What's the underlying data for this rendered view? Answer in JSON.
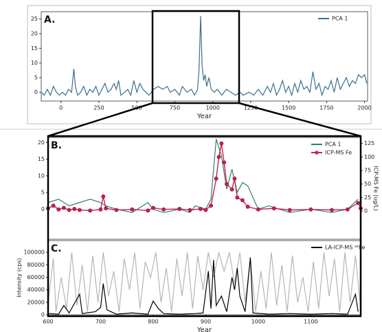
{
  "chart_data": [
    {
      "type": "line",
      "label": "A.",
      "xlabel": "Year",
      "legend": "upper right",
      "xlim": [
        -130,
        2020
      ],
      "ylim": [
        -3,
        27.5
      ],
      "xticks": [
        0,
        250,
        500,
        750,
        1000,
        1250,
        1500,
        1750,
        2000
      ],
      "yticks": [
        0,
        5,
        10,
        15,
        20,
        25
      ],
      "series": [
        {
          "name": "PCA 1",
          "color": "#3a6e8f",
          "x": [
            -130,
            -110,
            -90,
            -70,
            -50,
            -30,
            -10,
            10,
            30,
            50,
            70,
            85,
            95,
            110,
            130,
            150,
            170,
            190,
            210,
            230,
            250,
            270,
            290,
            310,
            330,
            350,
            365,
            380,
            395,
            420,
            440,
            460,
            480,
            500,
            520,
            540,
            560,
            580,
            610,
            640,
            670,
            700,
            720,
            750,
            780,
            800,
            830,
            860,
            880,
            900,
            910,
            920,
            930,
            940,
            950,
            960,
            975,
            990,
            1010,
            1030,
            1060,
            1090,
            1120,
            1150,
            1180,
            1200,
            1240,
            1270,
            1300,
            1330,
            1360,
            1380,
            1400,
            1420,
            1440,
            1460,
            1480,
            1500,
            1520,
            1540,
            1560,
            1580,
            1600,
            1620,
            1640,
            1660,
            1680,
            1700,
            1720,
            1740,
            1760,
            1780,
            1800,
            1820,
            1840,
            1860,
            1880,
            1900,
            1920,
            1940,
            1960,
            1980,
            2000,
            2015
          ],
          "values": [
            0,
            -1,
            1,
            -1,
            2,
            0,
            -1,
            0,
            -1,
            1,
            0,
            8,
            2,
            -1,
            0,
            2,
            -1,
            1,
            0,
            2,
            -1,
            1,
            3,
            0,
            1,
            3,
            1,
            4,
            -1,
            0,
            1,
            -1,
            4,
            0,
            3,
            1,
            0,
            -1,
            1,
            2,
            1,
            2,
            0,
            1,
            -1,
            2,
            0,
            1,
            -1,
            1,
            8,
            26,
            9,
            4,
            6,
            2,
            5,
            1,
            0,
            1,
            -1,
            1,
            0,
            -1,
            0,
            -1,
            0,
            -1,
            1,
            -1,
            2,
            0,
            3,
            -1,
            1,
            4,
            0,
            2,
            -1,
            3,
            0,
            4,
            1,
            2,
            0,
            7,
            1,
            3,
            -1,
            2,
            1,
            4,
            0,
            5,
            1,
            3,
            5,
            2,
            4,
            3,
            6,
            5,
            6,
            3
          ]
        }
      ]
    },
    {
      "type": "line",
      "label": "B.",
      "legend": "upper right",
      "ylabel2": "ICP-MS Fe (ug/L)",
      "xlim": [
        600,
        1195
      ],
      "ylim": [
        -9,
        21.5
      ],
      "y2lim": [
        -52,
        136
      ],
      "yticks": [
        0,
        5,
        10,
        15,
        20
      ],
      "y2ticks": [
        0,
        25,
        50,
        75,
        100,
        125
      ],
      "series": [
        {
          "name": "PCA 1",
          "color": "#2e7d6b",
          "x": [
            600,
            620,
            640,
            660,
            680,
            700,
            710,
            730,
            760,
            790,
            800,
            820,
            850,
            870,
            880,
            900,
            910,
            920,
            930,
            940,
            950,
            960,
            970,
            980,
            1000,
            1020,
            1060,
            1100,
            1140,
            1170,
            1190
          ],
          "values": [
            2,
            3,
            1,
            2,
            3,
            2,
            1,
            0,
            -1,
            2,
            0,
            -1,
            0,
            -1,
            1,
            0,
            3,
            21,
            16,
            6,
            12,
            5,
            8,
            7,
            0,
            1,
            -1,
            0,
            -1,
            0,
            3
          ]
        },
        {
          "name": "ICP-MS Fe",
          "color": "#cc1f4a",
          "axis": "y2",
          "marker": "circle",
          "x": [
            600,
            610,
            620,
            630,
            640,
            650,
            660,
            680,
            700,
            705,
            710,
            730,
            760,
            790,
            800,
            820,
            850,
            870,
            890,
            900,
            910,
            920,
            925,
            930,
            935,
            940,
            950,
            955,
            960,
            970,
            980,
            1000,
            1030,
            1060,
            1100,
            1140,
            1170,
            1190,
            1195
          ],
          "values": [
            5,
            10,
            3,
            6,
            2,
            4,
            2,
            1,
            3,
            27,
            5,
            2,
            3,
            1,
            6,
            3,
            4,
            2,
            4,
            2,
            10,
            60,
            100,
            125,
            90,
            50,
            40,
            60,
            25,
            20,
            8,
            3,
            5,
            2,
            3,
            2,
            3,
            15,
            5
          ]
        }
      ]
    },
    {
      "type": "line",
      "label": "C.",
      "xlabel": "Year",
      "ylabel": "Intensity (cps)",
      "legend": "upper right",
      "xlim": [
        600,
        1195
      ],
      "ylim": [
        0,
        119000
      ],
      "xticks": [
        600,
        700,
        800,
        900,
        1000,
        1100
      ],
      "yticks": [
        0,
        20000,
        40000,
        60000,
        80000,
        100000
      ],
      "series": [
        {
          "color": "#b5b5b5",
          "x": [
            600,
            610,
            615,
            625,
            635,
            645,
            655,
            665,
            675,
            685,
            695,
            705,
            715,
            725,
            735,
            745,
            755,
            765,
            775,
            785,
            795,
            805,
            815,
            825,
            835,
            845,
            855,
            865,
            875,
            885,
            895,
            905,
            915,
            925,
            935,
            945,
            955,
            965,
            975,
            985,
            995,
            1005,
            1015,
            1025,
            1035,
            1045,
            1055,
            1065,
            1075,
            1085,
            1095,
            1105,
            1115,
            1125,
            1135,
            1145,
            1155,
            1165,
            1175,
            1185,
            1195
          ],
          "values": [
            20000,
            90000,
            5000,
            60000,
            10000,
            100000,
            15000,
            80000,
            5000,
            95000,
            20000,
            100000,
            30000,
            70000,
            5000,
            90000,
            40000,
            100000,
            10000,
            85000,
            60000,
            100000,
            20000,
            75000,
            5000,
            90000,
            30000,
            100000,
            10000,
            95000,
            40000,
            100000,
            60000,
            100000,
            70000,
            100000,
            50000,
            100000,
            20000,
            90000,
            5000,
            70000,
            10000,
            100000,
            15000,
            80000,
            5000,
            95000,
            20000,
            60000,
            5000,
            85000,
            10000,
            100000,
            30000,
            90000,
            5000,
            100000,
            20000,
            95000,
            10000
          ]
        },
        {
          "name": "LA-ICP-MS ⁵⁶Fe",
          "color": "#000000",
          "x": [
            600,
            620,
            630,
            640,
            660,
            665,
            690,
            700,
            705,
            712,
            730,
            760,
            790,
            800,
            810,
            820,
            850,
            880,
            895,
            905,
            910,
            915,
            920,
            930,
            940,
            950,
            955,
            960,
            965,
            975,
            985,
            990,
            1020,
            1060,
            1100,
            1140,
            1170,
            1185,
            1190
          ],
          "values": [
            2000,
            1000,
            15000,
            3000,
            33000,
            2000,
            5000,
            12000,
            50000,
            8000,
            1000,
            3000,
            1000,
            22000,
            10000,
            2000,
            1000,
            2000,
            3000,
            70000,
            10000,
            88000,
            15000,
            30000,
            5000,
            60000,
            40000,
            75000,
            30000,
            5000,
            92000,
            3000,
            1000,
            2000,
            1000,
            2000,
            1000,
            33000,
            5000
          ]
        }
      ]
    }
  ]
}
